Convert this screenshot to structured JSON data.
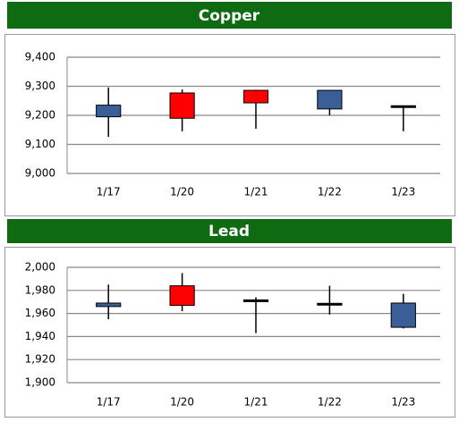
{
  "chart_data": [
    {
      "type": "candlestick",
      "title": "Copper",
      "categories": [
        "1/17",
        "1/20",
        "1/21",
        "1/22",
        "1/23"
      ],
      "open": [
        9235,
        9190,
        9243,
        9286,
        9230
      ],
      "high": [
        9296,
        9289,
        9288,
        9286,
        9231
      ],
      "low": [
        9126,
        9145,
        9154,
        9200,
        9145
      ],
      "close": [
        9195,
        9277,
        9286,
        9222,
        9230
      ],
      "up_color": "#ff0000",
      "down_color": "#3a5f96",
      "ylim": [
        9000,
        9400
      ],
      "yticks": [
        {
          "value": 9000,
          "label": "9,000"
        },
        {
          "value": 9100,
          "label": "9,100"
        },
        {
          "value": 9200,
          "label": "9,200"
        },
        {
          "value": 9300,
          "label": "9,300"
        },
        {
          "value": 9400,
          "label": "9,400"
        }
      ],
      "grid": true
    },
    {
      "type": "candlestick",
      "title": "Lead",
      "categories": [
        "1/17",
        "1/20",
        "1/21",
        "1/22",
        "1/23"
      ],
      "open": [
        1969,
        1967,
        1971,
        1968,
        1969
      ],
      "high": [
        1985,
        1995,
        1974,
        1984,
        1977
      ],
      "low": [
        1955,
        1962,
        1943,
        1959,
        1947
      ],
      "close": [
        1966,
        1984,
        1971,
        1967,
        1948
      ],
      "up_color": "#ff0000",
      "down_color": "#3a5f96",
      "ylim": [
        1900,
        2000
      ],
      "yticks": [
        {
          "value": 1900,
          "label": "1,900"
        },
        {
          "value": 1920,
          "label": "1,920"
        },
        {
          "value": 1940,
          "label": "1,940"
        },
        {
          "value": 1960,
          "label": "1,960"
        },
        {
          "value": 1980,
          "label": "1,980"
        },
        {
          "value": 2000,
          "label": "2,000"
        }
      ],
      "grid": true
    }
  ]
}
